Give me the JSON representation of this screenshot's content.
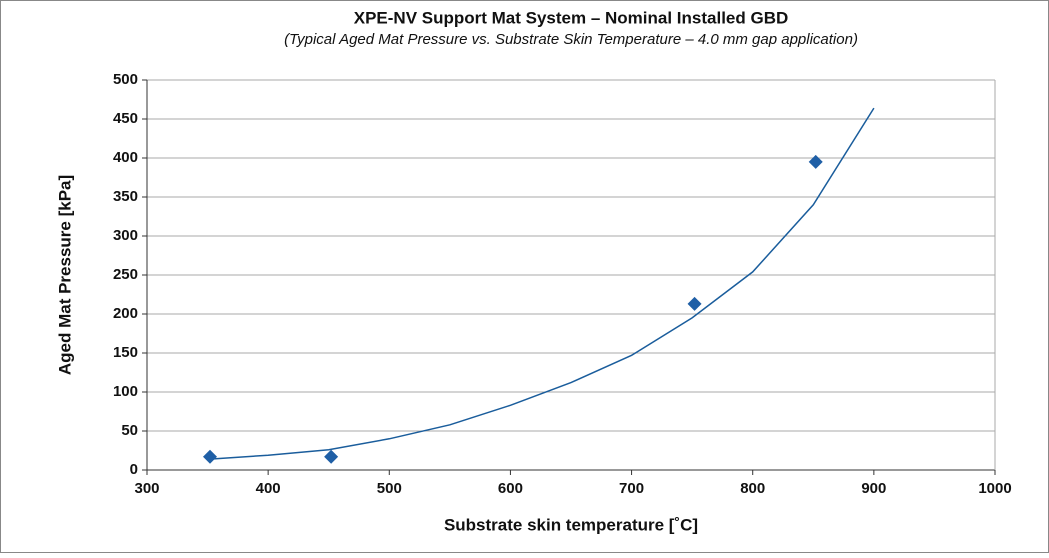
{
  "chart_data": {
    "type": "scatter",
    "title": "XPE-NV Support Mat System – Nominal Installed GBD",
    "subtitle": "(Typical Aged Mat Pressure vs. Substrate Skin Temperature – 4.0 mm gap application)",
    "x_label": "Substrate skin temperature [˚C]",
    "y_label": "Aged Mat Pressure [kPa]",
    "points": {
      "color": "#1f5fa6",
      "x": [
        352,
        452,
        752,
        852
      ],
      "values": [
        17,
        17,
        213,
        395
      ]
    },
    "trendline": {
      "color": "#1a5d9c",
      "x": [
        352,
        400,
        450,
        500,
        550,
        600,
        650,
        700,
        750,
        800,
        850,
        900
      ],
      "values": [
        14,
        19,
        26,
        40,
        58,
        83,
        112,
        147,
        195,
        254,
        340,
        464
      ]
    },
    "xlim": [
      300,
      1000
    ],
    "xticks": [
      300,
      400,
      500,
      600,
      700,
      800,
      900,
      1000
    ],
    "ylim": [
      0,
      500
    ],
    "yticks": [
      0,
      50,
      100,
      150,
      200,
      250,
      300,
      350,
      400,
      450,
      500
    ],
    "grid": true
  }
}
